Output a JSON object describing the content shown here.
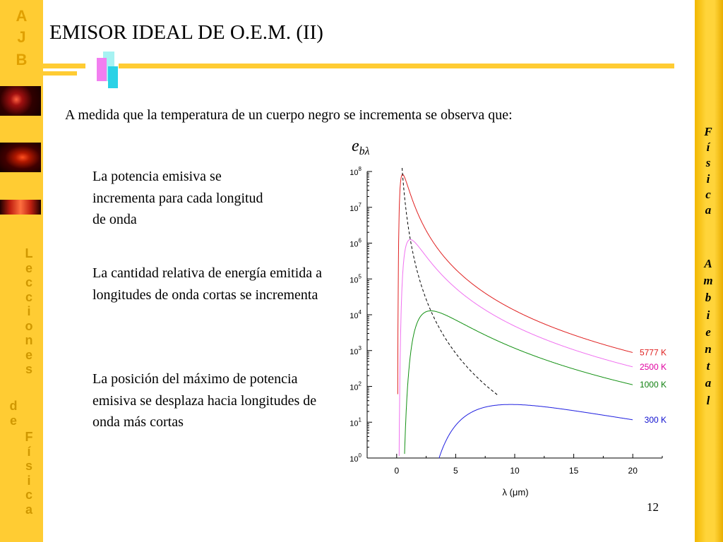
{
  "sidebar": {
    "logo_letters": [
      "A",
      "J",
      "B"
    ],
    "vertical_text_1": [
      "L",
      "e",
      "c",
      "c",
      "i",
      "o",
      "n",
      "e",
      "s"
    ],
    "vertical_text_2": [
      "d",
      "e"
    ],
    "vertical_text_3": [
      "F",
      "í",
      "s",
      "i",
      "c",
      "a"
    ]
  },
  "right_band": {
    "word1": [
      "F",
      "í",
      "s",
      "i",
      "c",
      "a"
    ],
    "word2": [
      "A",
      "m",
      "b",
      "i",
      "e",
      "n",
      "t",
      "a",
      "l"
    ]
  },
  "slide": {
    "title": "EMISOR IDEAL DE O.E.M. (II)",
    "subtitle": "A medida que la temperatura de un cuerpo negro se incrementa se observa que:",
    "bullets": [
      "La potencia emisiva se incrementa para cada longitud de onda",
      "La cantidad relativa de energía emitida a longitudes de onda cortas se incrementa",
      "La posición del máximo de potencia emisiva se desplaza hacia longitudes de onda más cortas"
    ],
    "page_number": "12"
  },
  "chart_data": {
    "type": "line",
    "ylabel_base": "e",
    "ylabel_sub": "bλ",
    "xlabel": "λ (μm)",
    "x_ticks": [
      "0",
      "5",
      "10",
      "15",
      "20"
    ],
    "y_ticks": [
      {
        "base": "10",
        "exp": "0"
      },
      {
        "base": "10",
        "exp": "1"
      },
      {
        "base": "10",
        "exp": "2"
      },
      {
        "base": "10",
        "exp": "3"
      },
      {
        "base": "10",
        "exp": "4"
      },
      {
        "base": "10",
        "exp": "5"
      },
      {
        "base": "10",
        "exp": "6"
      },
      {
        "base": "10",
        "exp": "7"
      },
      {
        "base": "10",
        "exp": "8"
      }
    ],
    "xlim": [
      -2.5,
      22.5
    ],
    "ylim_log10": [
      0,
      8
    ],
    "y_scale": "log",
    "series": [
      {
        "name": "5777 K",
        "T": 5777,
        "color": "#E02020",
        "label_color": "#E02020"
      },
      {
        "name": "2500 K",
        "T": 2500,
        "color": "#F070F0",
        "label_color": "#E000A0"
      },
      {
        "name": "1000 K",
        "T": 1000,
        "color": "#129012",
        "label_color": "#108010"
      },
      {
        "name": "300 K",
        "T": 300,
        "color": "#2020E0",
        "label_color": "#1010D0"
      }
    ],
    "wien_locus": {
      "style": "dashed",
      "color": "#000000"
    }
  }
}
